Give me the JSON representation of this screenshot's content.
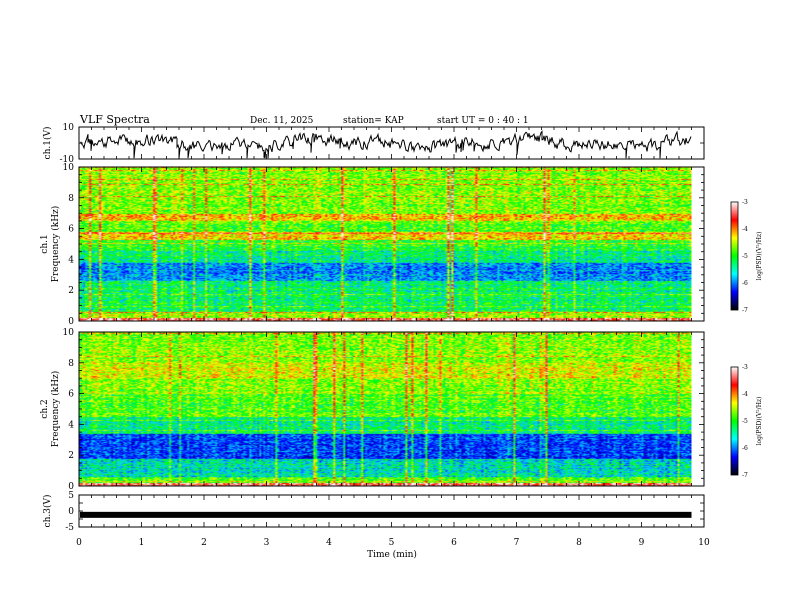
{
  "header": {
    "title": "VLF Spectra",
    "date": "Dec. 11, 2025",
    "station": "station= KAP",
    "start": "start  UT =   0 : 40 : 1"
  },
  "chart_data": [
    {
      "type": "line",
      "id": "ch1-waveform",
      "ylabel": "ch.1(V)",
      "ylim": [
        -10,
        10
      ],
      "yticks": [
        "10",
        "-10"
      ],
      "xlim": [
        0,
        10
      ],
      "data_end_min": 9.8,
      "series": [
        {
          "name": "ch.1",
          "color": "#000000"
        }
      ]
    },
    {
      "type": "heatmap",
      "id": "ch1-spectrogram",
      "ylabel_lines": [
        "ch.1",
        "Frequency (kHz)"
      ],
      "ylim": [
        0,
        10
      ],
      "yticks": [
        "0",
        "2",
        "4",
        "6",
        "8",
        "10"
      ],
      "xlim": [
        0,
        10
      ],
      "data_end_min": 9.8,
      "colorbar": {
        "label": "log(PSD)(V²/Hz)",
        "range": [
          -7,
          -3
        ],
        "ticks": [
          "-3",
          "-4",
          "-5",
          "-6",
          "-7"
        ],
        "colors": [
          "#ffffff",
          "#ff0000",
          "#ffff00",
          "#00ff00",
          "#00ffff",
          "#0000ff",
          "#000000"
        ]
      }
    },
    {
      "type": "heatmap",
      "id": "ch2-spectrogram",
      "ylabel_lines": [
        "ch.2",
        "Frequency (kHz)"
      ],
      "ylim": [
        0,
        10
      ],
      "yticks": [
        "0",
        "2",
        "4",
        "6",
        "8",
        "10"
      ],
      "xlim": [
        0,
        10
      ],
      "data_end_min": 9.8,
      "colorbar": {
        "label": "log(PSD)(V²/Hz)",
        "range": [
          -7,
          -3
        ],
        "ticks": [
          "-3",
          "-4",
          "-5",
          "-6",
          "-7"
        ],
        "colors": [
          "#ffffff",
          "#ff0000",
          "#ffff00",
          "#00ff00",
          "#00ffff",
          "#0000ff",
          "#000000"
        ]
      }
    },
    {
      "type": "line",
      "id": "ch3-waveform",
      "ylabel": "ch.3(V)",
      "ylim": [
        -5,
        5
      ],
      "yticks": [
        "5",
        "0",
        "-5"
      ],
      "xlim": [
        0,
        10
      ],
      "data_end_min": 9.8,
      "series": [
        {
          "name": "ch.3",
          "color": "#000000",
          "value": -1.2
        }
      ]
    }
  ],
  "x_axis": {
    "label": "Time  (min)",
    "ticks": [
      "0",
      "1",
      "2",
      "3",
      "4",
      "5",
      "6",
      "7",
      "8",
      "9",
      "10"
    ]
  }
}
